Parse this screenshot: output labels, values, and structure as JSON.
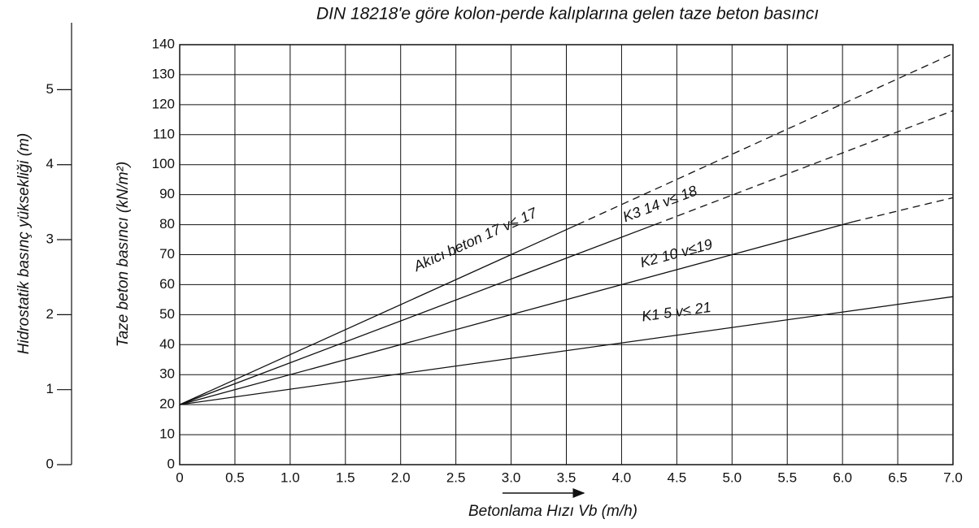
{
  "chart_data": {
    "type": "line",
    "title": "DIN 18218'e göre kolon-perde kalıplarına gelen taze beton basıncı",
    "x_label": "Betonlama Hızı Vb (m/h)",
    "y_label": "Taze beton basıncı (kN/m²)",
    "y2_label": "Hidrostatik basınç yüksekliği  (m)",
    "xlim": [
      0,
      7.0
    ],
    "xticks": [
      0,
      0.5,
      {
        "value": 1.0,
        "label": "1.0"
      },
      1.5,
      {
        "value": 2.0,
        "label": "2.0"
      },
      2.5,
      {
        "value": 3.0,
        "label": "3.0"
      },
      3.5,
      {
        "value": 4.0,
        "label": "4.0"
      },
      4.5,
      {
        "value": 5.0,
        "label": "5.0"
      },
      5.5,
      {
        "value": 6.0,
        "label": "6.0"
      },
      6.5,
      {
        "value": 7.0,
        "label": "7.0"
      }
    ],
    "ylim": [
      0,
      140
    ],
    "yticks": [
      0,
      10,
      20,
      30,
      40,
      50,
      60,
      70,
      80,
      90,
      100,
      110,
      120,
      130,
      140
    ],
    "y2lim": [
      0,
      5.6
    ],
    "y2ticks": [
      0,
      1,
      2,
      3,
      4,
      5
    ],
    "grid": true,
    "color": "#111111",
    "series": [
      {
        "label": "Akıcı beton  17 v≤ 17",
        "x": [
          0,
          3.6,
          7.0
        ],
        "values": [
          20,
          80,
          137
        ],
        "styles": [
          "solid",
          "dashed"
        ]
      },
      {
        "label": "K3  14 v≤ 18",
        "x": [
          0,
          4.3,
          7.0
        ],
        "values": [
          20,
          80,
          118
        ],
        "styles": [
          "solid",
          "dashed"
        ]
      },
      {
        "label": "K2  10 v≤19",
        "x": [
          0,
          6.1,
          7.0
        ],
        "values": [
          20,
          81,
          89
        ],
        "styles": [
          "solid",
          "dashed"
        ]
      },
      {
        "label": "K1  5 v≤ 21",
        "x": [
          0,
          7.0
        ],
        "values": [
          20,
          56
        ],
        "styles": [
          "solid"
        ]
      }
    ]
  }
}
